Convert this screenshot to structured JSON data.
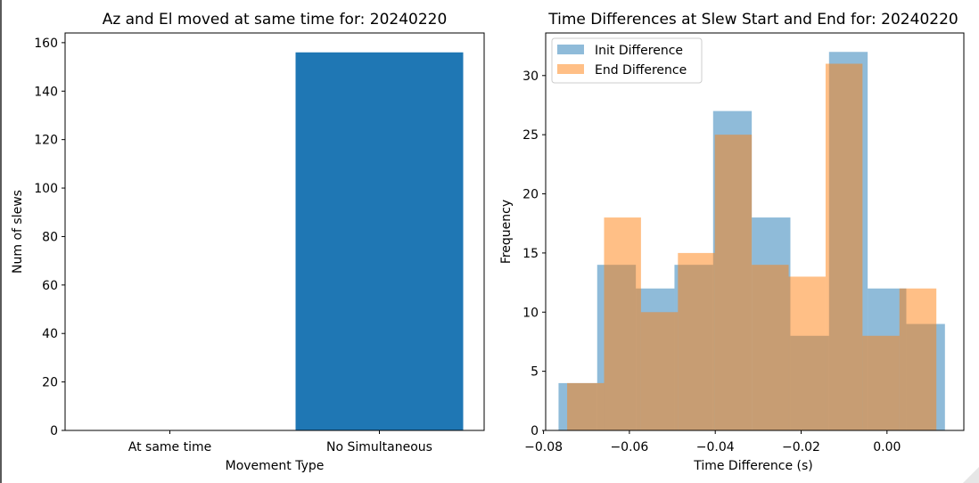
{
  "chart_data": [
    {
      "type": "bar",
      "title": "Az and El moved at same time for: 20240220",
      "xlabel": "Movement Type",
      "ylabel": "Num of slews",
      "categories": [
        "At same time",
        "No Simultaneous"
      ],
      "values": [
        0,
        156
      ],
      "ylim": [
        0,
        164
      ],
      "yticks": [
        0,
        20,
        40,
        60,
        80,
        100,
        120,
        140,
        160
      ],
      "color": "#1f77b4",
      "grid": false
    },
    {
      "type": "histogram",
      "title": "Time Differences at Slew Start and End for: 20240220",
      "xlabel": "Time Difference (s)",
      "ylabel": "Frequency",
      "xlim": [
        -0.0795,
        0.0179
      ],
      "ylim": [
        0,
        33.6
      ],
      "xticks": [
        -0.08,
        -0.06,
        -0.04,
        -0.02,
        0.0
      ],
      "xtick_labels": [
        "−0.08",
        "−0.06",
        "−0.04",
        "−0.02",
        "0.00"
      ],
      "yticks": [
        0,
        5,
        10,
        15,
        20,
        25,
        30
      ],
      "legend_position": "top-left",
      "grid": false,
      "series": [
        {
          "name": "Init Difference",
          "color": "#1f77b4",
          "alpha": 0.5,
          "bin_edges": [
            -0.0765,
            -0.0675,
            -0.0585,
            -0.0495,
            -0.0405,
            -0.0315,
            -0.0225,
            -0.0135,
            -0.0045,
            0.0045,
            0.0135
          ],
          "counts": [
            4,
            14,
            12,
            14,
            27,
            18,
            8,
            32,
            12,
            9
          ]
        },
        {
          "name": "End Difference",
          "color": "#ff7f0e",
          "alpha": 0.5,
          "bin_edges": [
            -0.0745,
            -0.0659,
            -0.0573,
            -0.0487,
            -0.0401,
            -0.0315,
            -0.0229,
            -0.0143,
            -0.0057,
            0.0029,
            0.0115
          ],
          "counts": [
            4,
            18,
            10,
            15,
            25,
            14,
            13,
            31,
            8,
            12
          ]
        }
      ]
    }
  ]
}
